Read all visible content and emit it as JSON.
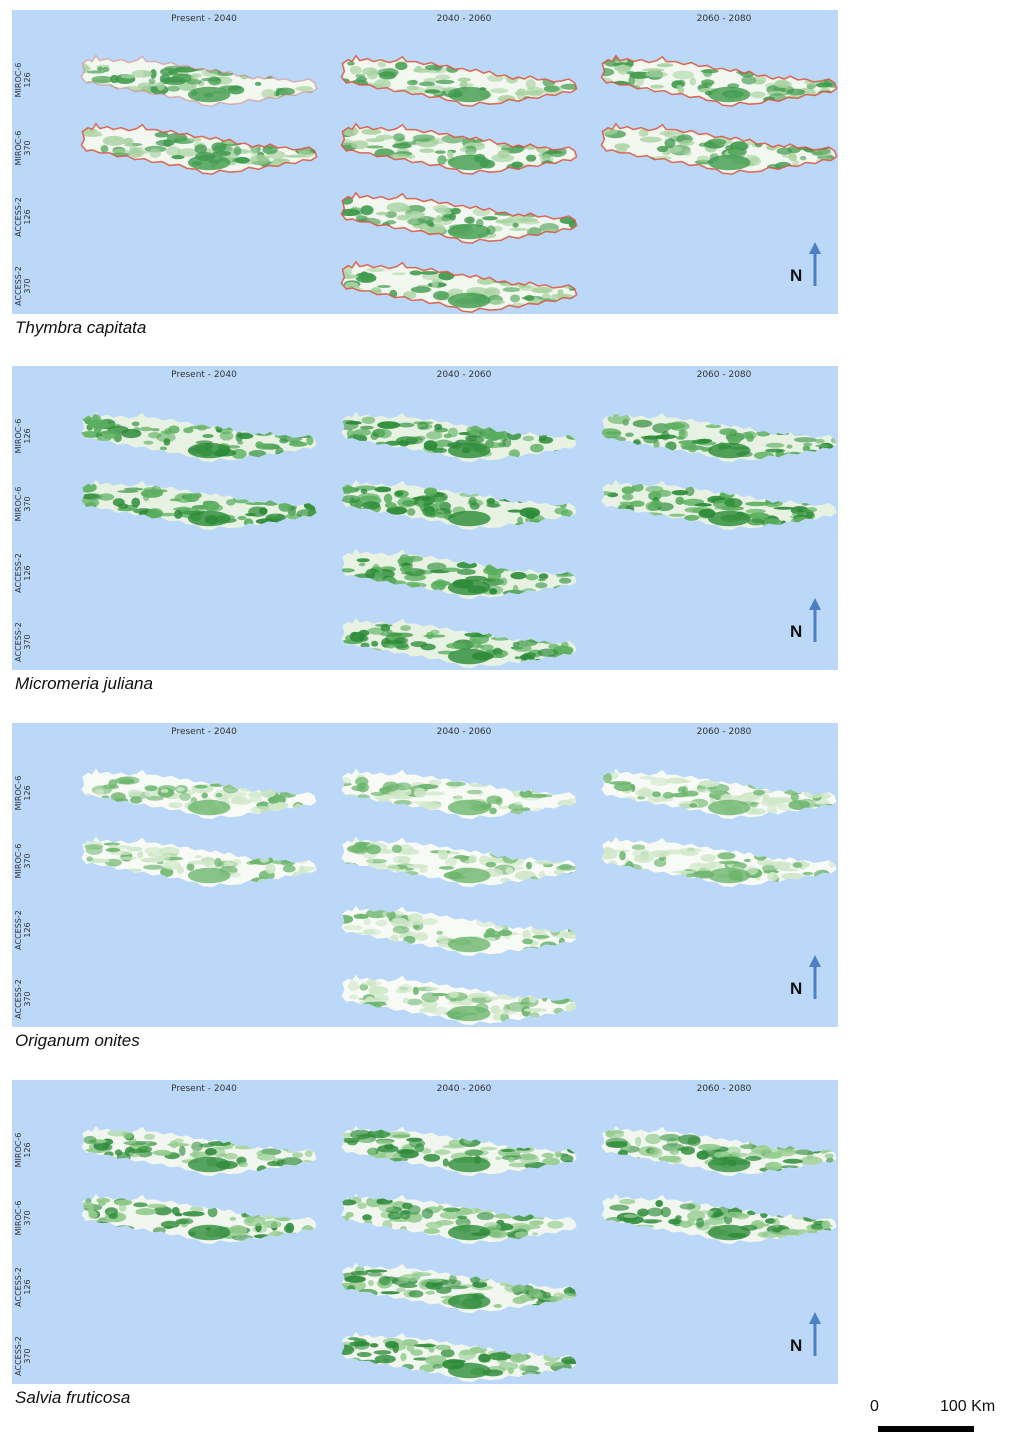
{
  "columns": [
    "Present - 2040",
    "2040 - 2060",
    "2060 - 2080"
  ],
  "rows": [
    {
      "model": "MIROC-6",
      "ssp": "126"
    },
    {
      "model": "MIROC-6",
      "ssp": "370"
    },
    {
      "model": "ACCESS-2",
      "ssp": "126"
    },
    {
      "model": "ACCESS-2",
      "ssp": "370"
    }
  ],
  "north_label": "N",
  "legend_colors": {
    "sea": "#bcd8f9",
    "land_base": "#f3f8f1",
    "suitability": "#2e8b3c",
    "loss": "#d9533e"
  },
  "panels": [
    {
      "species": "Thymbra capitata",
      "theme": "mixed-loss",
      "maps_present": [
        [
          true,
          true,
          true
        ],
        [
          true,
          true,
          true
        ],
        [
          false,
          true,
          false
        ],
        [
          false,
          true,
          false
        ]
      ]
    },
    {
      "species": "Micromeria juliana",
      "theme": "dark",
      "maps_present": [
        [
          true,
          true,
          true
        ],
        [
          true,
          true,
          true
        ],
        [
          false,
          true,
          false
        ],
        [
          false,
          true,
          false
        ]
      ]
    },
    {
      "species": "Origanum onites",
      "theme": "light",
      "maps_present": [
        [
          true,
          true,
          true
        ],
        [
          true,
          true,
          true
        ],
        [
          false,
          true,
          false
        ],
        [
          false,
          true,
          false
        ]
      ]
    },
    {
      "species": "Salvia fruticosa",
      "theme": "medium",
      "maps_present": [
        [
          true,
          true,
          true
        ],
        [
          true,
          true,
          true
        ],
        [
          false,
          true,
          false
        ],
        [
          false,
          true,
          false
        ]
      ]
    }
  ],
  "scale_bar": {
    "start_label": "0",
    "end_label": "100 Km"
  }
}
